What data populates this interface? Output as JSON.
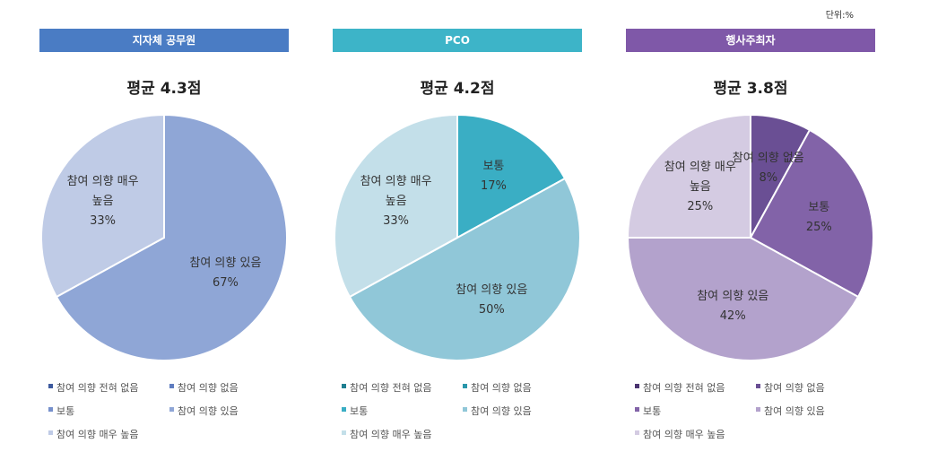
{
  "unit": "단위:%",
  "chart_data": [
    {
      "type": "pie",
      "title": "지자체 공무원",
      "subtitle": "평균 4.3점",
      "header_color": "#4a7cc4",
      "categories": [
        "참여 의향 전혀 없음",
        "참여 의향 없음",
        "보통",
        "참여 의향 있음",
        "참여 의향 매우 높음"
      ],
      "values": [
        0,
        0,
        0,
        67,
        33
      ],
      "value_labels": [
        null,
        null,
        null,
        "67%",
        "33%"
      ],
      "colors": [
        "#3d5a9e",
        "#5f7dc0",
        "#7690cc",
        "#8fa6d6",
        "#bfcbe6"
      ]
    },
    {
      "type": "pie",
      "title": "PCO",
      "subtitle": "평균 4.2점",
      "header_color": "#3db4c8",
      "categories": [
        "참여 의향 전혀 없음",
        "참여 의향 없음",
        "보통",
        "참여 의향 있음",
        "참여 의향 매우 높음"
      ],
      "values": [
        0,
        0,
        17,
        50,
        33
      ],
      "value_labels": [
        null,
        null,
        "17%",
        "50%",
        "33%"
      ],
      "colors": [
        "#1f7f91",
        "#2a97ab",
        "#3aaec4",
        "#90c7d8",
        "#c3dfe9"
      ]
    },
    {
      "type": "pie",
      "title": "행사주최자",
      "subtitle": "평균 3.8점",
      "header_color": "#7f58a8",
      "categories": [
        "참여 의향 전혀 없음",
        "참여 의향 없음",
        "보통",
        "참여 의향 있음",
        "참여 의향 매우 높음"
      ],
      "values": [
        0,
        8,
        25,
        42,
        25
      ],
      "value_labels": [
        null,
        "8%",
        "25%",
        "42%",
        "25%"
      ],
      "colors": [
        "#4a3470",
        "#6a4f94",
        "#8263a8",
        "#b3a2cc",
        "#d4cbe2"
      ]
    }
  ]
}
